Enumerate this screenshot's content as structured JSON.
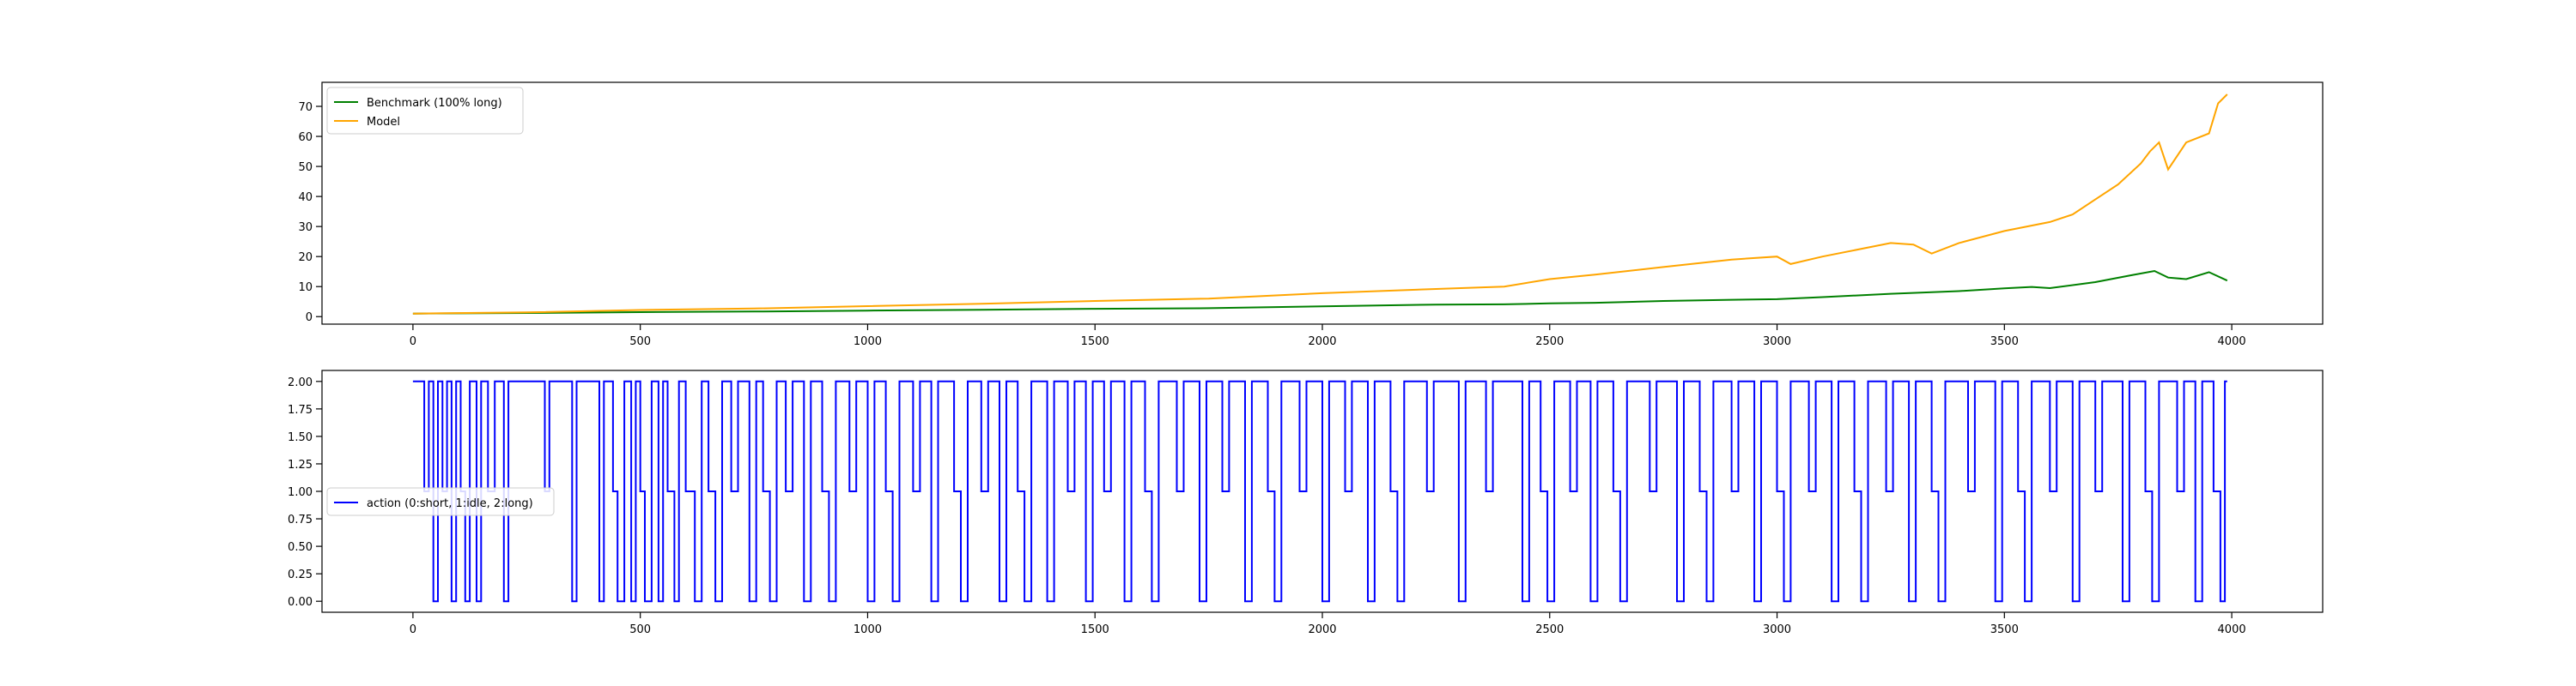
{
  "chart_data": [
    {
      "type": "line",
      "title": "",
      "xlabel": "",
      "ylabel": "",
      "xlim": [
        -200,
        4200
      ],
      "ylim": [
        -2.5,
        78
      ],
      "x_ticks": [
        0,
        500,
        1000,
        1500,
        2000,
        2500,
        3000,
        3500,
        4000
      ],
      "x_tick_labels": [
        "0",
        "500",
        "1000",
        "1500",
        "2000",
        "2500",
        "3000",
        "3500",
        "4000"
      ],
      "y_ticks": [
        0,
        10,
        20,
        30,
        40,
        50,
        60,
        70
      ],
      "y_tick_labels": [
        "0",
        "10",
        "20",
        "30",
        "40",
        "50",
        "60",
        "70"
      ],
      "grid": false,
      "legend_position": "upper-left",
      "series": [
        {
          "name": "Benchmark (100% long)",
          "color": "#008000",
          "x": [
            0,
            250,
            500,
            750,
            1000,
            1250,
            1500,
            1750,
            2000,
            2250,
            2400,
            2500,
            2600,
            2750,
            2900,
            3000,
            3100,
            3250,
            3400,
            3500,
            3560,
            3600,
            3700,
            3780,
            3830,
            3860,
            3900,
            3950,
            3990
          ],
          "y": [
            1.0,
            1.2,
            1.5,
            1.7,
            2.0,
            2.3,
            2.6,
            2.8,
            3.4,
            4.0,
            4.1,
            4.4,
            4.6,
            5.2,
            5.6,
            5.8,
            6.5,
            7.6,
            8.5,
            9.4,
            9.9,
            9.5,
            11.5,
            13.8,
            15.2,
            13.0,
            12.5,
            14.8,
            12.0
          ]
        },
        {
          "name": "Model",
          "color": "#FFA500",
          "x": [
            0,
            250,
            500,
            750,
            1000,
            1250,
            1500,
            1750,
            2000,
            2250,
            2400,
            2500,
            2600,
            2750,
            2900,
            3000,
            3030,
            3100,
            3250,
            3300,
            3340,
            3400,
            3500,
            3600,
            3650,
            3700,
            3750,
            3800,
            3820,
            3840,
            3860,
            3900,
            3950,
            3970,
            3990
          ],
          "y": [
            1.0,
            1.4,
            2.2,
            2.7,
            3.5,
            4.3,
            5.2,
            6.0,
            7.8,
            9.2,
            10.0,
            12.5,
            14.0,
            16.5,
            19.0,
            20.0,
            17.5,
            20.0,
            24.5,
            24.0,
            21.0,
            24.5,
            28.5,
            31.5,
            34.0,
            39.0,
            44.0,
            51.0,
            55.0,
            58.0,
            49.0,
            58.0,
            61.0,
            71.0,
            74.0
          ]
        }
      ]
    },
    {
      "type": "line",
      "title": "",
      "xlabel": "",
      "ylabel": "",
      "xlim": [
        -200,
        4200
      ],
      "ylim": [
        -0.1,
        2.1
      ],
      "x_ticks": [
        0,
        500,
        1000,
        1500,
        2000,
        2500,
        3000,
        3500,
        4000
      ],
      "x_tick_labels": [
        "0",
        "500",
        "1000",
        "1500",
        "2000",
        "2500",
        "3000",
        "3500",
        "4000"
      ],
      "y_ticks": [
        0.0,
        0.25,
        0.5,
        0.75,
        1.0,
        1.25,
        1.5,
        1.75,
        2.0
      ],
      "y_tick_labels": [
        "0.00",
        "0.25",
        "0.50",
        "0.75",
        "1.00",
        "1.25",
        "1.50",
        "1.75",
        "2.00"
      ],
      "grid": false,
      "legend_position": "center-left",
      "step": true,
      "series": [
        {
          "name": "action (0:short, 1:idle, 2:long)",
          "color": "#0000FF",
          "segments": [
            [
              0,
              2
            ],
            [
              25,
              1
            ],
            [
              35,
              2
            ],
            [
              45,
              0
            ],
            [
              55,
              2
            ],
            [
              65,
              1
            ],
            [
              75,
              2
            ],
            [
              85,
              0
            ],
            [
              95,
              2
            ],
            [
              105,
              1
            ],
            [
              115,
              0
            ],
            [
              125,
              2
            ],
            [
              140,
              0
            ],
            [
              150,
              2
            ],
            [
              165,
              1
            ],
            [
              180,
              2
            ],
            [
              200,
              0
            ],
            [
              210,
              2
            ],
            [
              290,
              1
            ],
            [
              300,
              2
            ],
            [
              350,
              0
            ],
            [
              360,
              2
            ],
            [
              410,
              0
            ],
            [
              420,
              2
            ],
            [
              440,
              1
            ],
            [
              450,
              0
            ],
            [
              465,
              2
            ],
            [
              480,
              0
            ],
            [
              490,
              2
            ],
            [
              500,
              1
            ],
            [
              510,
              0
            ],
            [
              525,
              2
            ],
            [
              540,
              0
            ],
            [
              550,
              2
            ],
            [
              560,
              1
            ],
            [
              575,
              0
            ],
            [
              585,
              2
            ],
            [
              600,
              1
            ],
            [
              620,
              0
            ],
            [
              635,
              2
            ],
            [
              650,
              1
            ],
            [
              665,
              0
            ],
            [
              680,
              2
            ],
            [
              700,
              1
            ],
            [
              715,
              2
            ],
            [
              740,
              0
            ],
            [
              755,
              2
            ],
            [
              770,
              1
            ],
            [
              785,
              0
            ],
            [
              800,
              2
            ],
            [
              820,
              1
            ],
            [
              835,
              2
            ],
            [
              860,
              0
            ],
            [
              875,
              2
            ],
            [
              900,
              1
            ],
            [
              915,
              0
            ],
            [
              930,
              2
            ],
            [
              960,
              1
            ],
            [
              975,
              2
            ],
            [
              1000,
              0
            ],
            [
              1015,
              2
            ],
            [
              1040,
              1
            ],
            [
              1055,
              0
            ],
            [
              1070,
              2
            ],
            [
              1100,
              1
            ],
            [
              1115,
              2
            ],
            [
              1140,
              0
            ],
            [
              1155,
              2
            ],
            [
              1190,
              1
            ],
            [
              1205,
              0
            ],
            [
              1220,
              2
            ],
            [
              1250,
              1
            ],
            [
              1265,
              2
            ],
            [
              1290,
              0
            ],
            [
              1305,
              2
            ],
            [
              1330,
              1
            ],
            [
              1345,
              0
            ],
            [
              1360,
              2
            ],
            [
              1395,
              0
            ],
            [
              1410,
              2
            ],
            [
              1440,
              1
            ],
            [
              1455,
              2
            ],
            [
              1480,
              0
            ],
            [
              1495,
              2
            ],
            [
              1520,
              1
            ],
            [
              1535,
              2
            ],
            [
              1565,
              0
            ],
            [
              1580,
              2
            ],
            [
              1610,
              1
            ],
            [
              1625,
              0
            ],
            [
              1640,
              2
            ],
            [
              1680,
              1
            ],
            [
              1695,
              2
            ],
            [
              1730,
              0
            ],
            [
              1745,
              2
            ],
            [
              1780,
              1
            ],
            [
              1795,
              2
            ],
            [
              1830,
              0
            ],
            [
              1845,
              2
            ],
            [
              1880,
              1
            ],
            [
              1895,
              0
            ],
            [
              1910,
              2
            ],
            [
              1950,
              1
            ],
            [
              1965,
              2
            ],
            [
              2000,
              0
            ],
            [
              2015,
              2
            ],
            [
              2050,
              1
            ],
            [
              2065,
              2
            ],
            [
              2100,
              0
            ],
            [
              2115,
              2
            ],
            [
              2150,
              1
            ],
            [
              2165,
              0
            ],
            [
              2180,
              2
            ],
            [
              2230,
              1
            ],
            [
              2245,
              2
            ],
            [
              2300,
              0
            ],
            [
              2315,
              2
            ],
            [
              2360,
              1
            ],
            [
              2375,
              2
            ],
            [
              2440,
              0
            ],
            [
              2455,
              2
            ],
            [
              2480,
              1
            ],
            [
              2495,
              0
            ],
            [
              2510,
              2
            ],
            [
              2545,
              1
            ],
            [
              2560,
              2
            ],
            [
              2590,
              0
            ],
            [
              2605,
              2
            ],
            [
              2640,
              1
            ],
            [
              2655,
              0
            ],
            [
              2670,
              2
            ],
            [
              2720,
              1
            ],
            [
              2735,
              2
            ],
            [
              2780,
              0
            ],
            [
              2795,
              2
            ],
            [
              2830,
              1
            ],
            [
              2845,
              0
            ],
            [
              2860,
              2
            ],
            [
              2900,
              1
            ],
            [
              2915,
              2
            ],
            [
              2950,
              0
            ],
            [
              2965,
              2
            ],
            [
              3000,
              1
            ],
            [
              3015,
              0
            ],
            [
              3030,
              2
            ],
            [
              3070,
              1
            ],
            [
              3085,
              2
            ],
            [
              3120,
              0
            ],
            [
              3135,
              2
            ],
            [
              3170,
              1
            ],
            [
              3185,
              0
            ],
            [
              3200,
              2
            ],
            [
              3240,
              1
            ],
            [
              3255,
              2
            ],
            [
              3290,
              0
            ],
            [
              3305,
              2
            ],
            [
              3340,
              1
            ],
            [
              3355,
              0
            ],
            [
              3370,
              2
            ],
            [
              3420,
              1
            ],
            [
              3435,
              2
            ],
            [
              3480,
              0
            ],
            [
              3495,
              2
            ],
            [
              3530,
              1
            ],
            [
              3545,
              0
            ],
            [
              3560,
              2
            ],
            [
              3600,
              1
            ],
            [
              3615,
              2
            ],
            [
              3650,
              0
            ],
            [
              3665,
              2
            ],
            [
              3700,
              1
            ],
            [
              3715,
              2
            ],
            [
              3760,
              0
            ],
            [
              3775,
              2
            ],
            [
              3810,
              1
            ],
            [
              3825,
              0
            ],
            [
              3840,
              2
            ],
            [
              3880,
              1
            ],
            [
              3895,
              2
            ],
            [
              3920,
              0
            ],
            [
              3935,
              2
            ],
            [
              3960,
              1
            ],
            [
              3975,
              0
            ],
            [
              3985,
              2
            ]
          ]
        }
      ]
    }
  ]
}
